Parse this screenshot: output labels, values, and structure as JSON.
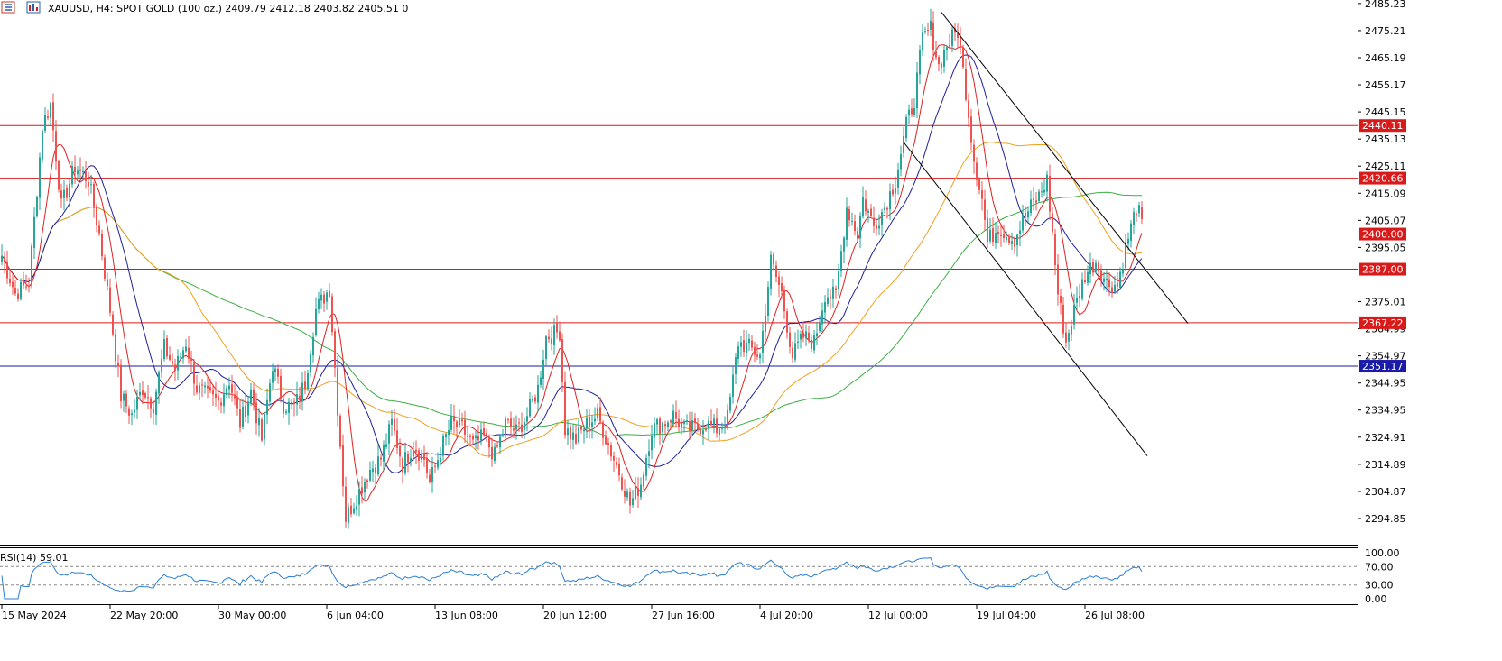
{
  "header": {
    "symbol_line": "XAUUSD, H4:  SPOT GOLD (100 oz.)  2409.79 2412.18 2403.82 2405.51  0",
    "menu_icon": "list-icon",
    "chart_icon": "chart-type-icon"
  },
  "rsi_label": "RSI(14) 59.01",
  "colors": {
    "bull": "#26a69a",
    "bear": "#ef5350",
    "hline_red": "#d91a1a",
    "hline_blue": "#1a1aa8",
    "ma_fast": "#dd2222",
    "ma_mid": "#1f1f9a",
    "ma_orange": "#f0a020",
    "ma_green": "#3cb043",
    "rsi": "#2a7fd4",
    "channel": "#000000"
  },
  "chart_data": {
    "type": "candlestick",
    "title": "XAUUSD, H4:  SPOT GOLD (100 oz.)",
    "price_axis": {
      "ylim": [
        2285,
        2485.23
      ],
      "ticks": [
        "2485.23",
        "2475.21",
        "2465.19",
        "2455.17",
        "2445.15",
        "2435.13",
        "2425.11",
        "2415.09",
        "2405.07",
        "2395.05",
        "2375.01",
        "2364.99",
        "2354.97",
        "2344.95",
        "2334.95",
        "2324.91",
        "2314.89",
        "2304.87",
        "2294.85"
      ]
    },
    "x_labels": [
      {
        "i": 0,
        "label": "15 May 2024"
      },
      {
        "i": 40,
        "label": "22 May 20:00"
      },
      {
        "i": 80,
        "label": "30 May 00:00"
      },
      {
        "i": 120,
        "label": "6 Jun 04:00"
      },
      {
        "i": 160,
        "label": "13 Jun 08:00"
      },
      {
        "i": 200,
        "label": "20 Jun 12:00"
      },
      {
        "i": 240,
        "label": "27 Jun 16:00"
      },
      {
        "i": 280,
        "label": "4 Jul 20:00"
      },
      {
        "i": 320,
        "label": "12 Jul 00:00"
      },
      {
        "i": 360,
        "label": "19 Jul 04:00"
      },
      {
        "i": 400,
        "label": "26 Jul 08:00"
      }
    ],
    "horizontal_levels": [
      {
        "price": 2440.11,
        "label": "2440.11",
        "color": "red"
      },
      {
        "price": 2420.66,
        "label": "2420.66",
        "color": "red"
      },
      {
        "price": 2400.0,
        "label": "2400.00",
        "color": "red"
      },
      {
        "price": 2387.0,
        "label": "2387.00",
        "color": "red"
      },
      {
        "price": 2367.22,
        "label": "2367.22",
        "color": "red"
      },
      {
        "price": 2351.17,
        "label": "2351.17",
        "color": "blue"
      }
    ],
    "channel_lines": [
      {
        "i1": 347,
        "p1": 2482,
        "i2": 438,
        "p2": 2367
      },
      {
        "i1": 333,
        "p1": 2434,
        "i2": 423,
        "p2": 2318
      }
    ],
    "anchors": [
      [
        0,
        2392
      ],
      [
        5,
        2378
      ],
      [
        10,
        2382
      ],
      [
        15,
        2440
      ],
      [
        18,
        2448
      ],
      [
        22,
        2410
      ],
      [
        27,
        2425
      ],
      [
        32,
        2420
      ],
      [
        36,
        2400
      ],
      [
        40,
        2372
      ],
      [
        44,
        2340
      ],
      [
        48,
        2333
      ],
      [
        52,
        2343
      ],
      [
        56,
        2337
      ],
      [
        60,
        2358
      ],
      [
        64,
        2350
      ],
      [
        68,
        2360
      ],
      [
        72,
        2343
      ],
      [
        76,
        2340
      ],
      [
        80,
        2338
      ],
      [
        84,
        2346
      ],
      [
        88,
        2330
      ],
      [
        92,
        2342
      ],
      [
        96,
        2324
      ],
      [
        100,
        2352
      ],
      [
        104,
        2337
      ],
      [
        108,
        2336
      ],
      [
        112,
        2345
      ],
      [
        116,
        2372
      ],
      [
        121,
        2380
      ],
      [
        124,
        2336
      ],
      [
        127,
        2295
      ],
      [
        131,
        2303
      ],
      [
        136,
        2313
      ],
      [
        140,
        2317
      ],
      [
        144,
        2330
      ],
      [
        148,
        2315
      ],
      [
        152,
        2322
      ],
      [
        156,
        2317
      ],
      [
        158,
        2308
      ],
      [
        162,
        2320
      ],
      [
        166,
        2330
      ],
      [
        170,
        2328
      ],
      [
        174,
        2322
      ],
      [
        178,
        2325
      ],
      [
        182,
        2318
      ],
      [
        186,
        2330
      ],
      [
        190,
        2327
      ],
      [
        194,
        2333
      ],
      [
        198,
        2343
      ],
      [
        201,
        2362
      ],
      [
        206,
        2364
      ],
      [
        208,
        2328
      ],
      [
        212,
        2324
      ],
      [
        216,
        2330
      ],
      [
        220,
        2333
      ],
      [
        224,
        2322
      ],
      [
        228,
        2312
      ],
      [
        232,
        2300
      ],
      [
        236,
        2308
      ],
      [
        240,
        2328
      ],
      [
        244,
        2330
      ],
      [
        248,
        2333
      ],
      [
        252,
        2328
      ],
      [
        256,
        2328
      ],
      [
        260,
        2330
      ],
      [
        264,
        2328
      ],
      [
        268,
        2332
      ],
      [
        272,
        2360
      ],
      [
        276,
        2358
      ],
      [
        280,
        2355
      ],
      [
        284,
        2390
      ],
      [
        288,
        2378
      ],
      [
        292,
        2355
      ],
      [
        296,
        2362
      ],
      [
        300,
        2360
      ],
      [
        304,
        2378
      ],
      [
        308,
        2377
      ],
      [
        312,
        2410
      ],
      [
        316,
        2400
      ],
      [
        318,
        2413
      ],
      [
        320,
        2408
      ],
      [
        322,
        2403
      ],
      [
        326,
        2410
      ],
      [
        330,
        2420
      ],
      [
        334,
        2440
      ],
      [
        337,
        2450
      ],
      [
        340,
        2472
      ],
      [
        343,
        2476
      ],
      [
        346,
        2462
      ],
      [
        349,
        2470
      ],
      [
        353,
        2475
      ],
      [
        356,
        2453
      ],
      [
        359,
        2428
      ],
      [
        362,
        2413
      ],
      [
        364,
        2397
      ],
      [
        368,
        2403
      ],
      [
        371,
        2400
      ],
      [
        374,
        2398
      ],
      [
        377,
        2405
      ],
      [
        380,
        2410
      ],
      [
        383,
        2414
      ],
      [
        386,
        2420
      ],
      [
        388,
        2400
      ],
      [
        390,
        2378
      ],
      [
        393,
        2360
      ],
      [
        396,
        2372
      ],
      [
        400,
        2385
      ],
      [
        404,
        2390
      ],
      [
        408,
        2382
      ],
      [
        412,
        2381
      ],
      [
        415,
        2395
      ],
      [
        419,
        2410
      ],
      [
        421,
        2405
      ]
    ],
    "moving_averages": [
      {
        "period": 9,
        "color": "ma_fast"
      },
      {
        "period": 21,
        "color": "ma_mid"
      },
      {
        "period": 55,
        "color": "ma_orange"
      },
      {
        "period": 100,
        "color": "ma_green"
      }
    ],
    "rsi": {
      "ylim": [
        0,
        100
      ],
      "ticks": [
        "100.00",
        "70.00",
        "30.00",
        "0.00"
      ],
      "levels": [
        70,
        30
      ],
      "last": 59.01
    }
  }
}
